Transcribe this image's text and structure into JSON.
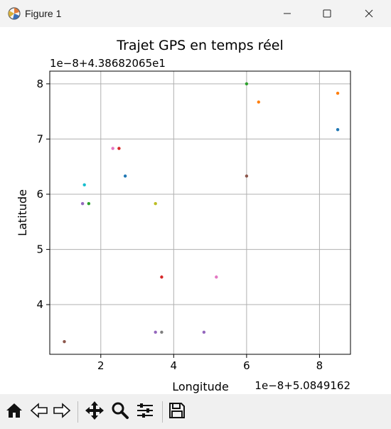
{
  "window": {
    "title": "Figure 1",
    "icons": [
      "app-icon",
      "minimize-icon",
      "maximize-icon",
      "close-icon"
    ]
  },
  "chart_data": {
    "type": "scatter",
    "title": "Trajet GPS en temps réel",
    "xlabel": "Longitude",
    "ylabel": "Latitude",
    "x_offset_label": "1e−8+5.0849162",
    "y_offset_label": "1e−8+4.38682065e1",
    "xlim": [
      0.6,
      8.85
    ],
    "ylim": [
      3.1,
      8.23
    ],
    "x_ticks": [
      2,
      4,
      6,
      8
    ],
    "y_ticks": [
      4,
      5,
      6,
      7,
      8
    ],
    "grid": true,
    "legend": "none",
    "points": [
      {
        "x": 1.0,
        "y": 3.33,
        "color": "#8c564b"
      },
      {
        "x": 1.5,
        "y": 5.83,
        "color": "#9467bd"
      },
      {
        "x": 1.55,
        "y": 6.17,
        "color": "#17becf"
      },
      {
        "x": 1.67,
        "y": 5.83,
        "color": "#2ca02c"
      },
      {
        "x": 2.33,
        "y": 6.83,
        "color": "#e377c2"
      },
      {
        "x": 2.5,
        "y": 6.83,
        "color": "#d62728"
      },
      {
        "x": 2.67,
        "y": 6.33,
        "color": "#1f77b4"
      },
      {
        "x": 3.5,
        "y": 5.83,
        "color": "#bcbd22"
      },
      {
        "x": 3.5,
        "y": 3.5,
        "color": "#9467bd"
      },
      {
        "x": 3.67,
        "y": 3.5,
        "color": "#7f7f7f"
      },
      {
        "x": 3.67,
        "y": 4.5,
        "color": "#d62728"
      },
      {
        "x": 4.83,
        "y": 3.5,
        "color": "#9467bd"
      },
      {
        "x": 5.17,
        "y": 4.5,
        "color": "#e377c2"
      },
      {
        "x": 6.0,
        "y": 8.0,
        "color": "#2ca02c"
      },
      {
        "x": 6.0,
        "y": 6.33,
        "color": "#8c564b"
      },
      {
        "x": 6.33,
        "y": 7.67,
        "color": "#ff7f0e"
      },
      {
        "x": 8.5,
        "y": 7.83,
        "color": "#ff7f0e"
      },
      {
        "x": 8.5,
        "y": 7.17,
        "color": "#1f77b4"
      }
    ]
  },
  "toolbar": {
    "icons": [
      "home-icon",
      "back-icon",
      "forward-icon",
      "pan-icon",
      "zoom-icon",
      "configure-subplots-icon",
      "save-icon"
    ]
  }
}
